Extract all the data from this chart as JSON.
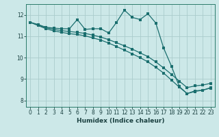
{
  "xlabel": "Humidex (Indice chaleur)",
  "background_color": "#cce8e8",
  "grid_color": "#aacccc",
  "line_color": "#1a6e6e",
  "xlim": [
    -0.5,
    23.5
  ],
  "ylim": [
    7.7,
    12.5
  ],
  "yticks": [
    8,
    9,
    10,
    11,
    12
  ],
  "xticks": [
    0,
    1,
    2,
    3,
    4,
    5,
    6,
    7,
    8,
    9,
    10,
    11,
    12,
    13,
    14,
    15,
    16,
    17,
    18,
    19,
    20,
    21,
    22,
    23
  ],
  "series1_x": [
    0,
    1,
    2,
    3,
    4,
    5,
    6,
    7,
    8,
    9,
    10,
    11,
    12,
    13,
    14,
    15,
    16,
    17,
    18,
    19,
    20,
    21,
    22,
    23
  ],
  "series1_y": [
    11.65,
    11.55,
    11.42,
    11.38,
    11.35,
    11.35,
    11.78,
    11.32,
    11.35,
    11.35,
    11.15,
    11.65,
    12.22,
    11.88,
    11.78,
    12.05,
    11.62,
    10.45,
    9.6,
    8.65,
    8.32,
    8.45,
    8.48,
    8.6
  ],
  "series2_x": [
    0,
    1,
    2,
    3,
    4,
    5,
    6,
    7,
    8,
    9,
    10,
    11,
    12,
    13,
    14,
    15,
    16,
    17,
    18,
    19,
    20,
    21,
    22,
    23
  ],
  "series2_y": [
    11.65,
    11.5,
    11.35,
    11.25,
    11.18,
    11.12,
    11.08,
    11.02,
    10.92,
    10.82,
    10.68,
    10.52,
    10.35,
    10.18,
    10.0,
    9.8,
    9.55,
    9.28,
    8.95,
    8.62,
    8.32,
    8.42,
    8.48,
    8.58
  ],
  "series3_x": [
    0,
    1,
    2,
    3,
    4,
    5,
    6,
    7,
    8,
    9,
    10,
    11,
    12,
    13,
    14,
    15,
    16,
    17,
    18,
    19,
    20,
    21,
    22,
    23
  ],
  "series3_y": [
    11.65,
    11.52,
    11.4,
    11.32,
    11.26,
    11.22,
    11.18,
    11.13,
    11.05,
    10.96,
    10.84,
    10.7,
    10.55,
    10.4,
    10.22,
    10.05,
    9.8,
    9.52,
    9.22,
    8.9,
    8.6,
    8.68,
    8.72,
    8.8
  ]
}
